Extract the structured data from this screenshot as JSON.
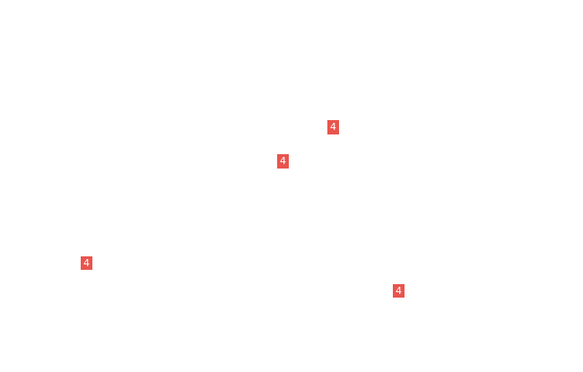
{
  "page": {
    "background_color": "#ffffff"
  },
  "markers": {
    "badge_color": "#e9544d",
    "text_color": "#ffffff",
    "items": [
      {
        "label": "4"
      },
      {
        "label": "4"
      },
      {
        "label": "4"
      },
      {
        "label": "4"
      }
    ]
  }
}
